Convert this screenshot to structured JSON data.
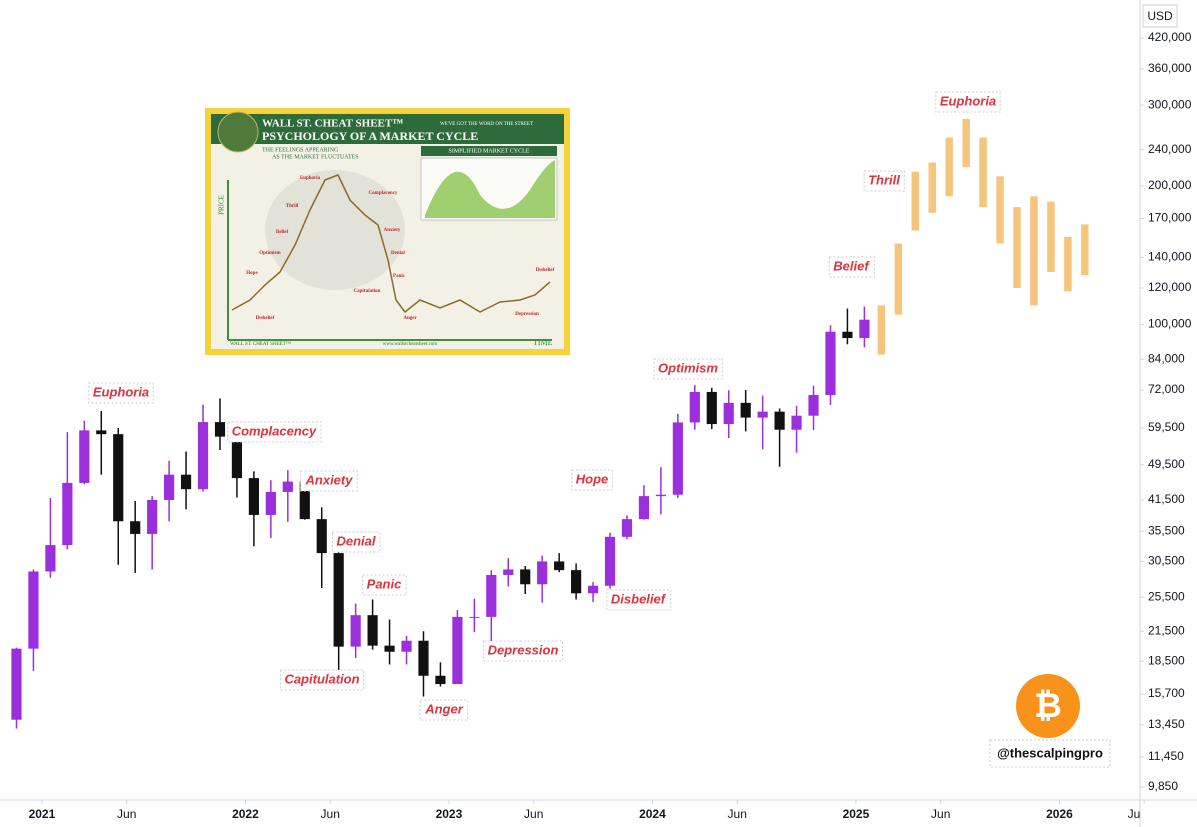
{
  "chart_data": {
    "type": "candlestick",
    "currency": "USD",
    "log_scale": true,
    "up_color": "#9b2fdc",
    "down_color": "#111111",
    "ylim": [
      9230,
      508000
    ],
    "yticks": [
      {
        "value": 420000,
        "label": "420,000"
      },
      {
        "value": 360000,
        "label": "360,000"
      },
      {
        "value": 300000,
        "label": "300,000"
      },
      {
        "value": 240000,
        "label": "240,000"
      },
      {
        "value": 200000,
        "label": "200,000"
      },
      {
        "value": 170000,
        "label": "170,000"
      },
      {
        "value": 140000,
        "label": "140,000"
      },
      {
        "value": 120000,
        "label": "120,000"
      },
      {
        "value": 100000,
        "label": "100,000"
      },
      {
        "value": 84000,
        "label": "84,000"
      },
      {
        "value": 72000,
        "label": "72,000"
      },
      {
        "value": 59500,
        "label": "59,500"
      },
      {
        "value": 49500,
        "label": "49,500"
      },
      {
        "value": 41500,
        "label": "41,500"
      },
      {
        "value": 35500,
        "label": "35,500"
      },
      {
        "value": 30500,
        "label": "30,500"
      },
      {
        "value": 25500,
        "label": "25,500"
      },
      {
        "value": 21500,
        "label": "21,500"
      },
      {
        "value": 18500,
        "label": "18,500"
      },
      {
        "value": 15700,
        "label": "15,700"
      },
      {
        "value": 13450,
        "label": "13,450"
      },
      {
        "value": 11450,
        "label": "11,450"
      },
      {
        "value": 9850,
        "label": "9,850"
      }
    ],
    "xlim": [
      2020.794,
      2026.396
    ],
    "xticks": [
      {
        "value": 2021,
        "label": "2021"
      },
      {
        "value": 2021.4167,
        "label": "Jun"
      },
      {
        "value": 2022,
        "label": "2022"
      },
      {
        "value": 2022.4167,
        "label": "Jun"
      },
      {
        "value": 2023,
        "label": "2023"
      },
      {
        "value": 2023.4167,
        "label": "Jun"
      },
      {
        "value": 2024,
        "label": "2024"
      },
      {
        "value": 2024.4167,
        "label": "Jun"
      },
      {
        "value": 2025,
        "label": "2025"
      },
      {
        "value": 2025.4167,
        "label": "Jun"
      },
      {
        "value": 2026,
        "label": "2026"
      },
      {
        "value": 2026.4167,
        "label": "Ju"
      }
    ],
    "candles": {
      "x": [
        2020.875,
        2020.9583,
        2021.0417,
        2021.125,
        2021.2083,
        2021.2917,
        2021.375,
        2021.4583,
        2021.5417,
        2021.625,
        2021.7083,
        2021.7917,
        2021.875,
        2021.9583,
        2022.0417,
        2022.125,
        2022.2083,
        2022.2917,
        2022.375,
        2022.4583,
        2022.5417,
        2022.625,
        2022.7083,
        2022.7917,
        2022.875,
        2022.9583,
        2023.0417,
        2023.125,
        2023.2083,
        2023.2917,
        2023.375,
        2023.4583,
        2023.5417,
        2023.625,
        2023.7083,
        2023.7917,
        2023.875,
        2023.9583,
        2024.0417,
        2024.125,
        2024.2083,
        2024.2917,
        2024.375,
        2024.4583,
        2024.5417,
        2024.625,
        2024.7083,
        2024.7917,
        2024.875,
        2024.9583,
        2025.0417
      ],
      "open": [
        13800,
        19700,
        29000,
        33100,
        45200,
        58800,
        57700,
        37300,
        35000,
        41500,
        47100,
        43800,
        61300,
        57000,
        46300,
        38500,
        43200,
        45500,
        37700,
        31800,
        19900,
        23300,
        20000,
        19400,
        20500,
        17200,
        16500,
        23100,
        23100,
        28500,
        29300,
        27200,
        30500,
        29200,
        26000,
        27000,
        34500,
        37700,
        42300,
        42600,
        61200,
        71300,
        60700,
        67500,
        62700,
        64600,
        59000,
        63300,
        70200,
        96400,
        93400
      ],
      "high": [
        19800,
        29300,
        41900,
        58300,
        61700,
        64800,
        59500,
        41300,
        42300,
        50500,
        52900,
        66900,
        69000,
        59100,
        47900,
        45800,
        48200,
        47400,
        40000,
        31900,
        24700,
        25200,
        22800,
        21000,
        21500,
        18400,
        23900,
        25300,
        29200,
        31000,
        29800,
        31400,
        31800,
        30200,
        27500,
        35200,
        38400,
        44700,
        48900,
        63900,
        73800,
        72800,
        71900,
        72000,
        70000,
        65600,
        66500,
        73600,
        99600,
        108300,
        109400
      ],
      "low": [
        13200,
        17600,
        28100,
        32400,
        44900,
        47100,
        30000,
        28800,
        29300,
        37300,
        39600,
        43300,
        53300,
        42000,
        32900,
        34300,
        37200,
        37600,
        26700,
        17600,
        18800,
        19600,
        18200,
        18200,
        15500,
        16300,
        16500,
        21400,
        19600,
        26900,
        25900,
        24800,
        28900,
        25200,
        24900,
        26600,
        34100,
        37600,
        38600,
        41900,
        59000,
        59200,
        56600,
        58500,
        53500,
        49000,
        52600,
        58900,
        66800,
        90500,
        89200
      ],
      "close": [
        19700,
        29000,
        33100,
        45200,
        58800,
        57700,
        37300,
        35000,
        41500,
        47100,
        43800,
        61300,
        57000,
        46300,
        38500,
        43200,
        45500,
        37700,
        31800,
        19900,
        23300,
        20000,
        19400,
        20500,
        17200,
        16500,
        23100,
        23100,
        28500,
        29300,
        27200,
        30500,
        29200,
        26000,
        27000,
        34500,
        37700,
        42300,
        42600,
        61200,
        71300,
        60700,
        67500,
        62700,
        64600,
        59000,
        63300,
        70200,
        96400,
        93400,
        102400
      ]
    },
    "projection": {
      "color": "#f5c57e",
      "x": [
        2025.125,
        2025.2083,
        2025.2917,
        2025.375,
        2025.4583,
        2025.5417,
        2025.625,
        2025.7083,
        2025.7917,
        2025.875,
        2025.9583,
        2026.0417,
        2026.125
      ],
      "high": [
        110000,
        150000,
        215000,
        225000,
        255000,
        280000,
        255000,
        210000,
        180000,
        190000,
        185000,
        155000,
        165000
      ],
      "low": [
        86000,
        105000,
        160000,
        175000,
        190000,
        220000,
        180000,
        150000,
        120000,
        110000,
        130000,
        118000,
        128000
      ]
    },
    "annotations": [
      "Euphoria",
      "Complacency",
      "Anxiety",
      "Denial",
      "Panic",
      "Capitulation",
      "Anger",
      "Depression",
      "Hope",
      "Disbelief",
      "Optimism",
      "Belief",
      "Thrill",
      "Euphoria"
    ],
    "watermark": "@thescalpingpro",
    "inset": {
      "brand": "WALL ST. CHEAT SHEET™",
      "tagline": "WE'VE GOT THE WORD ON THE STREET",
      "title": "PSYCHOLOGY OF A MARKET CYCLE",
      "subtitle": [
        "THE FEELINGS APPEARING",
        "AS THE MARKET FLUCTUATES"
      ],
      "simplified": "SIMPLIFIED MARKET CYCLE",
      "axis_price": "PRICE",
      "axis_time": "TIME",
      "stages": [
        "Euphoria",
        "Thrill",
        "Belief",
        "Optimism",
        "Hope",
        "Disbelief",
        "Complacency",
        "Anxiety",
        "Denial",
        "Panic",
        "Capitulation",
        "Anger",
        "Depression",
        "Disbelief"
      ],
      "url": "www.wallstcheatsheet.com"
    }
  }
}
